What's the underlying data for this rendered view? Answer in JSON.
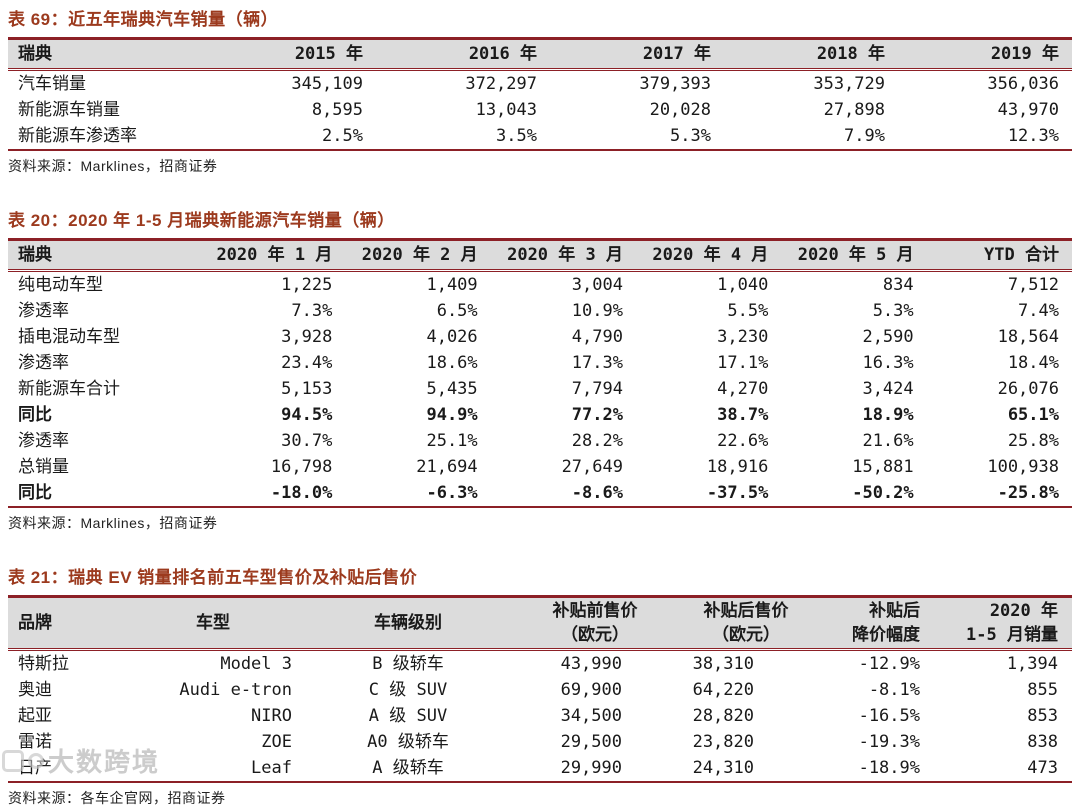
{
  "colors": {
    "title_red": "#9C3A1E",
    "table_border": "#8C2026",
    "header_bg": "#DCDCDC",
    "body_text": "#1A1A1A",
    "watermark_gray": "#AFAFAF"
  },
  "watermark": {
    "text": "大数跨境"
  },
  "tables": [
    {
      "name": "sweden-auto-sales-5yr",
      "title": "表 69：近五年瑞典汽车销量（辆）",
      "source": "资料来源：Marklines，招商证券",
      "columns": [
        {
          "lines": [
            "瑞典"
          ]
        },
        {
          "lines": [
            "2015 年"
          ]
        },
        {
          "lines": [
            "2016 年"
          ]
        },
        {
          "lines": [
            "2017 年"
          ]
        },
        {
          "lines": [
            "2018 年"
          ]
        },
        {
          "lines": [
            "2019 年"
          ]
        }
      ],
      "rows": [
        {
          "bold": false,
          "cells": [
            "汽车销量",
            "345,109",
            "372,297",
            "379,393",
            "353,729",
            "356,036"
          ]
        },
        {
          "bold": false,
          "cells": [
            "新能源车销量",
            "8,595",
            "13,043",
            "20,028",
            "27,898",
            "43,970"
          ]
        },
        {
          "bold": false,
          "cells": [
            "新能源车渗透率",
            "2.5%",
            "3.5%",
            "5.3%",
            "7.9%",
            "12.3%"
          ]
        }
      ]
    },
    {
      "name": "sweden-nev-sales-2020-jan-may",
      "title": "表 20：2020 年 1-5 月瑞典新能源汽车销量（辆）",
      "source": "资料来源：Marklines，招商证券",
      "columns": [
        {
          "lines": [
            "瑞典"
          ]
        },
        {
          "lines": [
            "2020 年 1 月"
          ]
        },
        {
          "lines": [
            "2020 年 2 月"
          ]
        },
        {
          "lines": [
            "2020 年 3 月"
          ]
        },
        {
          "lines": [
            "2020 年 4 月"
          ]
        },
        {
          "lines": [
            "2020 年 5 月"
          ]
        },
        {
          "lines": [
            "YTD 合计"
          ]
        }
      ],
      "rows": [
        {
          "bold": false,
          "cells": [
            "纯电动车型",
            "1,225",
            "1,409",
            "3,004",
            "1,040",
            "834",
            "7,512"
          ]
        },
        {
          "bold": false,
          "cells": [
            "渗透率",
            "7.3%",
            "6.5%",
            "10.9%",
            "5.5%",
            "5.3%",
            "7.4%"
          ]
        },
        {
          "bold": false,
          "cells": [
            "插电混动车型",
            "3,928",
            "4,026",
            "4,790",
            "3,230",
            "2,590",
            "18,564"
          ]
        },
        {
          "bold": false,
          "cells": [
            "渗透率",
            "23.4%",
            "18.6%",
            "17.3%",
            "17.1%",
            "16.3%",
            "18.4%"
          ]
        },
        {
          "bold": false,
          "cells": [
            "新能源车合计",
            "5,153",
            "5,435",
            "7,794",
            "4,270",
            "3,424",
            "26,076"
          ]
        },
        {
          "bold": true,
          "cells": [
            "同比",
            "94.5%",
            "94.9%",
            "77.2%",
            "38.7%",
            "18.9%",
            "65.1%"
          ]
        },
        {
          "bold": false,
          "cells": [
            "渗透率",
            "30.7%",
            "25.1%",
            "28.2%",
            "22.6%",
            "21.6%",
            "25.8%"
          ]
        },
        {
          "bold": false,
          "cells": [
            "总销量",
            "16,798",
            "21,694",
            "27,649",
            "18,916",
            "15,881",
            "100,938"
          ]
        },
        {
          "bold": true,
          "cells": [
            "同比",
            "-18.0%",
            "-6.3%",
            "-8.6%",
            "-37.5%",
            "-50.2%",
            "-25.8%"
          ]
        }
      ]
    },
    {
      "name": "sweden-ev-top5-prices",
      "title": "表 21：瑞典 EV 销量排名前五车型售价及补贴后售价",
      "source": "资料来源：各车企官网，招商证券",
      "columns": [
        {
          "lines": [
            "品牌"
          ]
        },
        {
          "lines": [
            "车型"
          ]
        },
        {
          "lines": [
            "车辆级别"
          ]
        },
        {
          "lines": [
            "补贴前售价",
            "（欧元）"
          ]
        },
        {
          "lines": [
            "补贴后售价",
            "（欧元）"
          ]
        },
        {
          "lines": [
            "补贴后",
            "降价幅度"
          ]
        },
        {
          "lines": [
            "2020 年",
            "1-5 月销量"
          ]
        }
      ],
      "rows": [
        {
          "bold": false,
          "cells": [
            "特斯拉",
            "Model 3",
            "B 级轿车",
            "43,990",
            "38,310",
            "-12.9%",
            "1,394"
          ]
        },
        {
          "bold": false,
          "cells": [
            "奥迪",
            "Audi e-tron",
            "C 级 SUV",
            "69,900",
            "64,220",
            "-8.1%",
            "855"
          ]
        },
        {
          "bold": false,
          "cells": [
            "起亚",
            "NIRO",
            "A 级 SUV",
            "34,500",
            "28,820",
            "-16.5%",
            "853"
          ]
        },
        {
          "bold": false,
          "cells": [
            "雷诺",
            "ZOE",
            "A0 级轿车",
            "29,500",
            "23,820",
            "-19.3%",
            "838"
          ]
        },
        {
          "bold": false,
          "cells": [
            "日产",
            "Leaf",
            "A 级轿车",
            "29,990",
            "24,310",
            "-18.9%",
            "473"
          ]
        }
      ]
    }
  ]
}
